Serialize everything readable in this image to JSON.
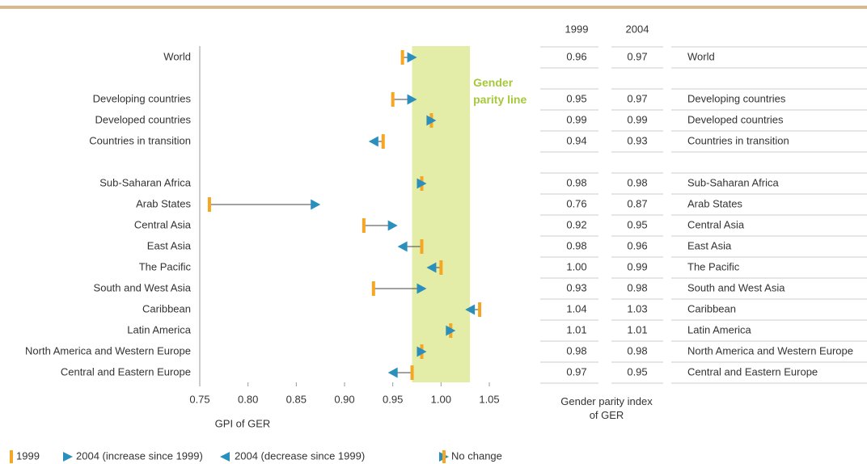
{
  "chart_data": {
    "type": "arrow",
    "categories": [
      "World",
      null,
      "Developing countries",
      "Developed countries",
      "Countries in transition",
      null,
      "Sub-Saharan Africa",
      "Arab States",
      "Central Asia",
      "East Asia",
      "The Pacific",
      "South and West Asia",
      "Caribbean",
      "Latin America",
      "North America and Western Europe",
      "Central and Eastern Europe"
    ],
    "series": [
      {
        "name": "1999",
        "color": "#f5a623",
        "values": [
          0.96,
          null,
          0.95,
          0.99,
          0.94,
          null,
          0.98,
          0.76,
          0.92,
          0.98,
          1.0,
          0.93,
          1.04,
          1.01,
          0.98,
          0.97
        ],
        "value_labels": [
          "0.96",
          null,
          "0.95",
          "0.99",
          "0.94",
          null,
          "0.98",
          "0.76",
          "0.92",
          "0.98",
          "1.00",
          "0.93",
          "1.04",
          "1.01",
          "0.98",
          "0.97"
        ]
      },
      {
        "name": "2004",
        "color": "#2a8fbd",
        "values": [
          0.97,
          null,
          0.97,
          0.99,
          0.93,
          null,
          0.98,
          0.87,
          0.95,
          0.96,
          0.99,
          0.98,
          1.03,
          1.01,
          0.98,
          0.95
        ],
        "value_labels": [
          "0.97",
          null,
          "0.97",
          "0.99",
          "0.93",
          null,
          "0.98",
          "0.87",
          "0.95",
          "0.96",
          "0.99",
          "0.98",
          "1.03",
          "1.01",
          "0.98",
          "0.95"
        ]
      }
    ],
    "xlim": [
      0.75,
      1.05
    ],
    "xticks": [
      0.75,
      {
        "value": 0.8,
        "label": "0.80"
      },
      0.85,
      {
        "value": 0.9,
        "label": "0.90"
      },
      0.95,
      {
        "value": 1.0,
        "label": "1.00"
      },
      1.05
    ],
    "x_label": "GPI of GER",
    "parity_band": [
      0.97,
      1.03
    ],
    "parity_label": "Gender parity line",
    "table_label": "Gender parity index of GER",
    "legend": [
      "1999",
      "2004 (increase since 1999)",
      "2004 (decrease since 1999)",
      "No change"
    ]
  }
}
